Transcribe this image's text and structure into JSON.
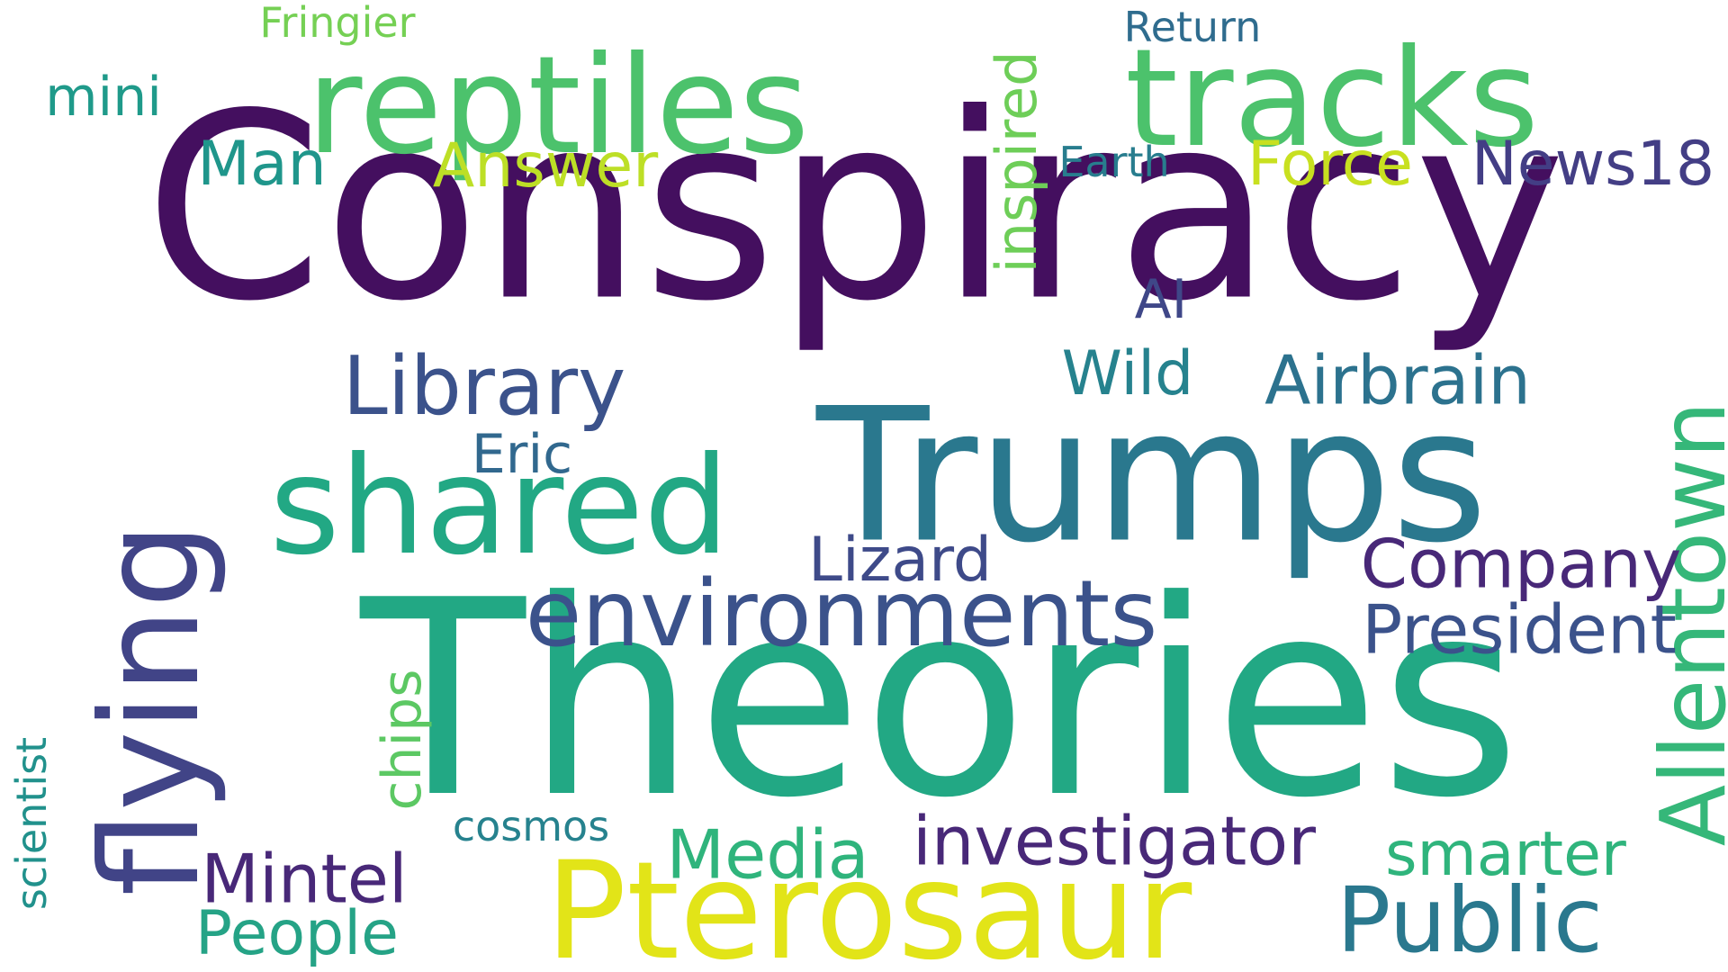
{
  "words": [
    {
      "text": "Conspiracy",
      "color": "#440f5f"
    },
    {
      "text": "Theories",
      "color": "#22a884"
    },
    {
      "text": "Trumps",
      "color": "#2a788e"
    },
    {
      "text": "reptiles",
      "color": "#4cc26c"
    },
    {
      "text": "tracks",
      "color": "#4cc26c"
    },
    {
      "text": "Pterosaur",
      "color": "#e2e418"
    },
    {
      "text": "flying",
      "color": "#414487"
    },
    {
      "text": "shared",
      "color": "#22a884"
    },
    {
      "text": "environments",
      "color": "#3b528b"
    },
    {
      "text": "Library",
      "color": "#3b528b"
    },
    {
      "text": "Allentown",
      "color": "#35b779"
    },
    {
      "text": "Public",
      "color": "#2a788e"
    },
    {
      "text": "investigator",
      "color": "#482878"
    },
    {
      "text": "Airbrain",
      "color": "#2c728e"
    },
    {
      "text": "Company",
      "color": "#482878"
    },
    {
      "text": "President",
      "color": "#3b528b"
    },
    {
      "text": "inspired",
      "color": "#6ece58"
    },
    {
      "text": "Lizard",
      "color": "#3e4a89"
    },
    {
      "text": "Media",
      "color": "#2fb47c"
    },
    {
      "text": "Mintel",
      "color": "#482878"
    },
    {
      "text": "smarter",
      "color": "#2fb47c"
    },
    {
      "text": "People",
      "color": "#25a386"
    },
    {
      "text": "News18",
      "color": "#433e85"
    },
    {
      "text": "Answer",
      "color": "#bddf26"
    },
    {
      "text": "Force",
      "color": "#c8e020"
    },
    {
      "text": "Man",
      "color": "#1f968b"
    },
    {
      "text": "mini",
      "color": "#1f9a8a"
    },
    {
      "text": "Eric",
      "color": "#31688e"
    },
    {
      "text": "Wild",
      "color": "#26828e"
    },
    {
      "text": "chips",
      "color": "#5cc863"
    },
    {
      "text": "AI",
      "color": "#3f4788"
    },
    {
      "text": "cosmos",
      "color": "#26828e"
    },
    {
      "text": "scientist",
      "color": "#21918c"
    },
    {
      "text": "Earth",
      "color": "#287d8e"
    },
    {
      "text": "Return",
      "color": "#2f6c8e"
    },
    {
      "text": "Fringier",
      "color": "#75d054"
    }
  ]
}
